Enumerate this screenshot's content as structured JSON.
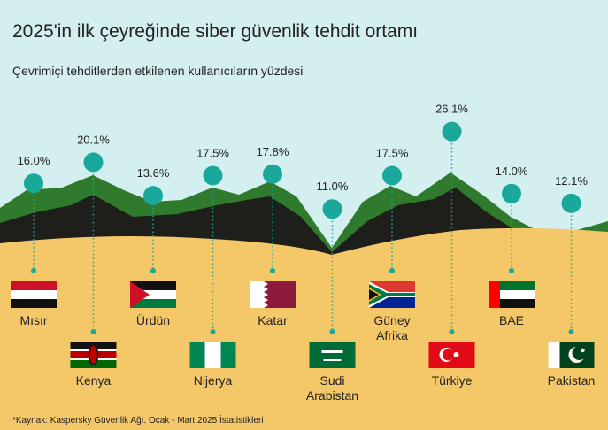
{
  "chart_data": {
    "type": "lollipop",
    "title": "2025'in ilk çeyreğinde siber güvenlik tehdit ortamı",
    "subtitle": "Çevrimiçi tehditlerden etkilenen kullanıcıların yüzdesi",
    "source": "*Kaynak: Kaspersky Güvenlik Ağı. Ocak - Mart 2025 İstatistikleri",
    "categories": [
      "Mısır",
      "Kenya",
      "Ürdün",
      "Nijerya",
      "Katar",
      "Sudi Arabistan",
      "Güney Afrika",
      "Türkiye",
      "BAE",
      "Pakistan"
    ],
    "values": [
      16.0,
      20.1,
      13.6,
      17.5,
      17.8,
      11.0,
      17.5,
      26.1,
      14.0,
      12.1
    ],
    "value_labels": [
      "16.0%",
      "20.1%",
      "13.6%",
      "17.5%",
      "17.8%",
      "11.0%",
      "17.5%",
      "26.1%",
      "14.0%",
      "12.1%"
    ],
    "color": "#1aa89a"
  }
}
